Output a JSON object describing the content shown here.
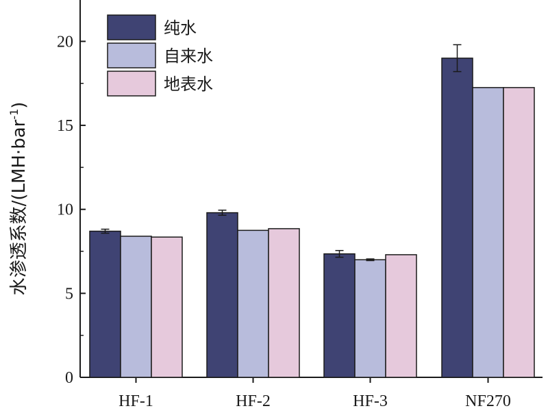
{
  "chart_data": {
    "type": "bar",
    "title": "",
    "xlabel": "",
    "ylabel_main": "水渗透系数/(LMH·bar",
    "ylabel_sup": "-1",
    "ylabel_close": ")",
    "ylim": [
      0,
      22
    ],
    "yticks": [
      0,
      5,
      10,
      15,
      20
    ],
    "ytick_labels": [
      "0",
      "5",
      "10",
      "15",
      "20"
    ],
    "categories": [
      "HF-1",
      "HF-2",
      "HF-3",
      "NF270"
    ],
    "legend_position": "top-left",
    "grid": false,
    "series": [
      {
        "name": "纯水",
        "color": "#3f4373",
        "values": [
          8.7,
          9.8,
          7.35,
          19.0
        ],
        "errors": [
          0.12,
          0.15,
          0.2,
          0.8
        ]
      },
      {
        "name": "自来水",
        "color": "#b8bcdc",
        "values": [
          8.4,
          8.75,
          7.0,
          17.25
        ],
        "errors": [
          0,
          0,
          0.05,
          0
        ]
      },
      {
        "name": "地表水",
        "color": "#e6c9dc",
        "values": [
          8.35,
          8.85,
          7.3,
          17.25
        ],
        "errors": [
          0,
          0,
          0,
          0
        ]
      }
    ]
  }
}
